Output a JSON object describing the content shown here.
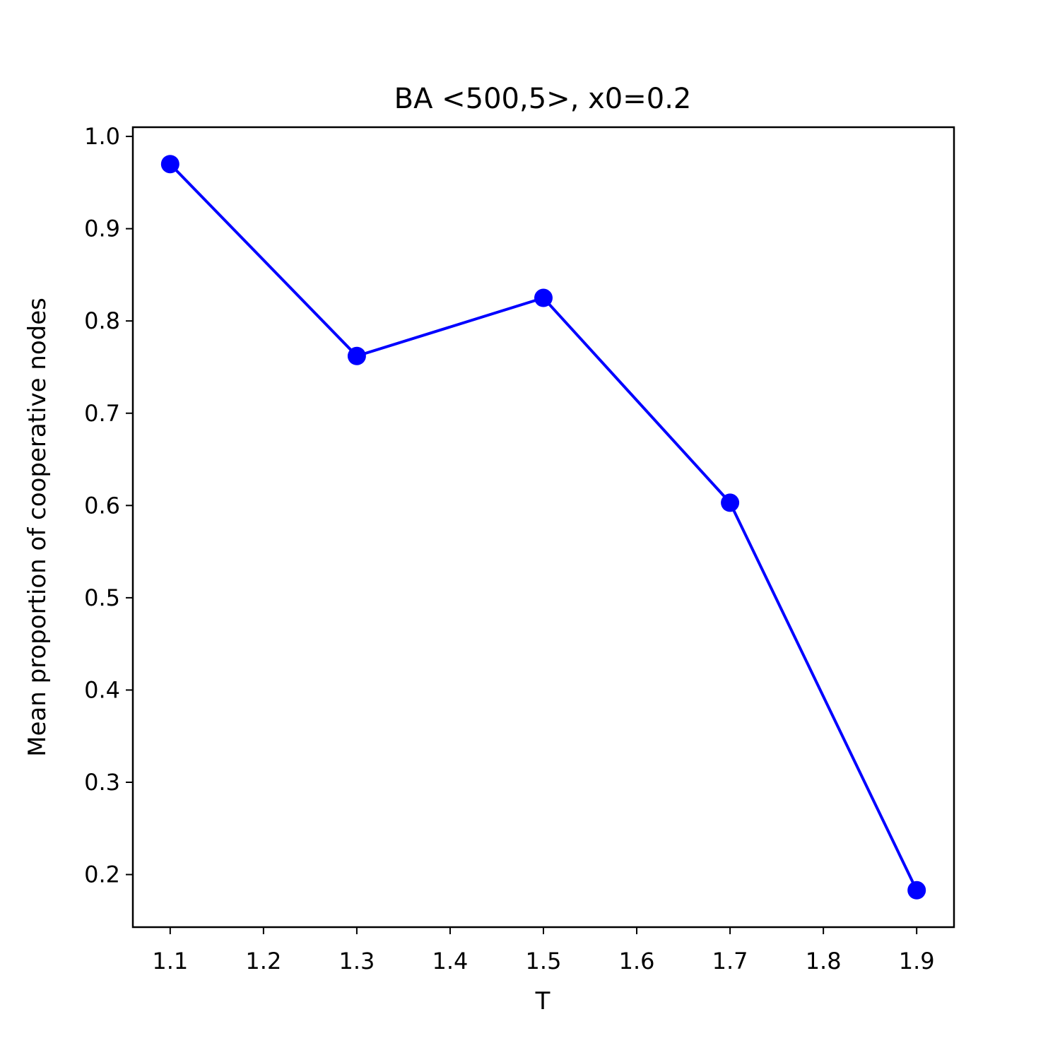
{
  "chart_data": {
    "type": "line",
    "title": "BA <500,5>, x0=0.2",
    "xlabel": "T",
    "ylabel": "Mean proportion of cooperative nodes",
    "x": [
      1.1,
      1.3,
      1.5,
      1.7,
      1.9
    ],
    "series": [
      {
        "values": [
          0.97,
          0.762,
          0.825,
          0.603,
          0.183
        ],
        "color": "#0000ff",
        "marker": "circle"
      }
    ],
    "xlim": [
      1.06,
      1.94
    ],
    "ylim": [
      0.143,
      1.01
    ],
    "xticks": [
      "1.1",
      "1.2",
      "1.3",
      "1.4",
      "1.5",
      "1.6",
      "1.7",
      "1.8",
      "1.9"
    ],
    "yticks": [
      "0.2",
      "0.3",
      "0.4",
      "0.5",
      "0.6",
      "0.7",
      "0.8",
      "0.9",
      "1.0"
    ],
    "grid": false,
    "legend": "none"
  }
}
